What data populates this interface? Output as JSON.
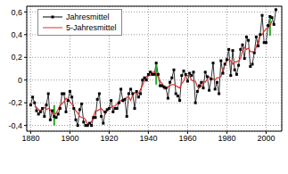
{
  "chart_data": {
    "type": "line",
    "x": [
      1880,
      1881,
      1882,
      1883,
      1884,
      1885,
      1886,
      1887,
      1888,
      1889,
      1890,
      1891,
      1892,
      1893,
      1894,
      1895,
      1896,
      1897,
      1898,
      1899,
      1900,
      1901,
      1902,
      1903,
      1904,
      1905,
      1906,
      1907,
      1908,
      1909,
      1910,
      1911,
      1912,
      1913,
      1914,
      1915,
      1916,
      1917,
      1918,
      1919,
      1920,
      1921,
      1922,
      1923,
      1924,
      1925,
      1926,
      1927,
      1928,
      1929,
      1930,
      1931,
      1932,
      1933,
      1934,
      1935,
      1936,
      1937,
      1938,
      1939,
      1940,
      1941,
      1942,
      1943,
      1944,
      1945,
      1946,
      1947,
      1948,
      1949,
      1950,
      1951,
      1952,
      1953,
      1954,
      1955,
      1956,
      1957,
      1958,
      1959,
      1960,
      1961,
      1962,
      1963,
      1964,
      1965,
      1966,
      1967,
      1968,
      1969,
      1970,
      1971,
      1972,
      1973,
      1974,
      1975,
      1976,
      1977,
      1978,
      1979,
      1980,
      1981,
      1982,
      1983,
      1984,
      1985,
      1986,
      1987,
      1988,
      1989,
      1990,
      1991,
      1992,
      1993,
      1994,
      1995,
      1996,
      1997,
      1998,
      1999,
      2000,
      2001,
      2002,
      2003,
      2004,
      2005
    ],
    "series": [
      {
        "name": "Jahresmittel",
        "color": "#000000",
        "marker": "square",
        "line_style": "solid",
        "values": [
          -0.22,
          -0.15,
          -0.2,
          -0.27,
          -0.3,
          -0.28,
          -0.25,
          -0.32,
          -0.22,
          -0.12,
          -0.35,
          -0.27,
          -0.32,
          -0.33,
          -0.3,
          -0.25,
          -0.12,
          -0.12,
          -0.28,
          -0.18,
          -0.1,
          -0.15,
          -0.25,
          -0.35,
          -0.4,
          -0.26,
          -0.21,
          -0.37,
          -0.4,
          -0.4,
          -0.38,
          -0.4,
          -0.33,
          -0.33,
          -0.17,
          -0.12,
          -0.32,
          -0.38,
          -0.28,
          -0.26,
          -0.25,
          -0.18,
          -0.28,
          -0.25,
          -0.25,
          -0.2,
          -0.08,
          -0.18,
          -0.17,
          -0.32,
          -0.12,
          -0.08,
          -0.12,
          -0.25,
          -0.1,
          -0.15,
          -0.12,
          0.0,
          0.02,
          0.0,
          0.05,
          0.07,
          0.05,
          0.05,
          0.15,
          0.05,
          -0.05,
          -0.05,
          -0.06,
          -0.07,
          -0.16,
          -0.02,
          0.02,
          0.09,
          -0.12,
          -0.14,
          -0.18,
          0.04,
          0.08,
          0.05,
          -0.01,
          0.06,
          0.04,
          0.07,
          -0.2,
          -0.1,
          -0.05,
          -0.02,
          -0.07,
          0.07,
          0.03,
          -0.09,
          0.01,
          0.15,
          -0.08,
          -0.02,
          -0.12,
          0.17,
          0.06,
          0.14,
          0.18,
          0.27,
          0.04,
          0.26,
          0.09,
          0.05,
          0.13,
          0.27,
          0.31,
          0.19,
          0.38,
          0.35,
          0.12,
          0.14,
          0.24,
          0.38,
          0.3,
          0.4,
          0.57,
          0.33,
          0.33,
          0.48,
          0.56,
          0.55,
          0.49,
          0.62
        ]
      },
      {
        "name": "5-Jahresmittel",
        "color": "#e03030",
        "marker": "none",
        "line_style": "solid",
        "values": [
          null,
          null,
          -0.23,
          -0.24,
          -0.26,
          -0.27,
          -0.25,
          -0.24,
          -0.26,
          -0.25,
          -0.26,
          -0.29,
          -0.31,
          -0.29,
          -0.26,
          -0.22,
          -0.21,
          -0.19,
          -0.16,
          -0.17,
          -0.19,
          -0.21,
          -0.25,
          -0.27,
          -0.29,
          -0.32,
          -0.33,
          -0.33,
          -0.35,
          -0.39,
          -0.38,
          -0.37,
          -0.32,
          -0.27,
          -0.27,
          -0.26,
          -0.25,
          -0.27,
          -0.3,
          -0.27,
          -0.25,
          -0.24,
          -0.23,
          -0.23,
          -0.21,
          -0.19,
          -0.18,
          -0.19,
          -0.17,
          -0.15,
          -0.15,
          -0.18,
          -0.13,
          -0.11,
          -0.12,
          -0.12,
          -0.08,
          -0.05,
          0.0,
          0.03,
          0.04,
          0.04,
          0.07,
          0.07,
          0.05,
          0.03,
          -0.01,
          -0.03,
          -0.08,
          -0.07,
          -0.06,
          -0.05,
          -0.04,
          -0.04,
          -0.05,
          -0.06,
          -0.07,
          -0.03,
          -0.01,
          0.04,
          0.04,
          0.04,
          0.0,
          -0.01,
          -0.01,
          -0.06,
          -0.07,
          -0.05,
          -0.01,
          -0.02,
          0.01,
          0.03,
          0.0,
          0.01,
          0.0,
          0.02,
          0.02,
          0.03,
          0.09,
          0.14,
          0.17,
          0.18,
          0.17,
          0.14,
          0.16,
          0.16,
          0.17,
          0.19,
          0.26,
          0.29,
          0.27,
          0.28,
          0.25,
          0.25,
          0.24,
          0.29,
          0.34,
          0.4,
          0.4,
          0.43,
          0.45,
          0.46,
          0.48,
          0.52,
          null,
          null
        ],
        "errors": [
          null,
          null,
          null,
          null,
          null,
          null,
          null,
          null,
          null,
          null,
          null,
          null,
          0.09,
          null,
          null,
          null,
          null,
          null,
          null,
          null,
          null,
          null,
          null,
          null,
          null,
          null,
          null,
          null,
          null,
          null,
          null,
          null,
          null,
          null,
          null,
          null,
          null,
          null,
          null,
          null,
          null,
          null,
          null,
          null,
          null,
          null,
          null,
          null,
          null,
          null,
          null,
          null,
          null,
          null,
          null,
          null,
          null,
          null,
          null,
          null,
          null,
          null,
          null,
          null,
          0.09,
          null,
          null,
          null,
          null,
          null,
          null,
          null,
          null,
          null,
          null,
          null,
          null,
          null,
          null,
          null,
          null,
          null,
          null,
          null,
          null,
          null,
          null,
          null,
          null,
          null,
          null,
          null,
          null,
          null,
          null,
          null,
          null,
          null,
          null,
          null,
          null,
          null,
          null,
          null,
          null,
          null,
          null,
          null,
          null,
          null,
          null,
          null,
          null,
          null,
          null,
          null,
          null,
          null,
          null,
          null,
          null,
          null,
          0.09,
          null,
          null,
          null
        ]
      }
    ],
    "xlim": [
      1878,
      2008
    ],
    "xticks": [
      1880,
      1900,
      1920,
      1940,
      1960,
      1980,
      2000
    ],
    "ylim": [
      -0.45,
      0.65
    ],
    "yticks": [
      {
        "value": -0.4,
        "label": "-0,4"
      },
      {
        "value": -0.2,
        "label": "-0,2"
      },
      0,
      {
        "value": 0.2,
        "label": "0,2"
      },
      {
        "value": 0.4,
        "label": "0,4"
      },
      {
        "value": 0.6,
        "label": "0,6"
      }
    ],
    "grid": true,
    "legend": "top-left"
  }
}
